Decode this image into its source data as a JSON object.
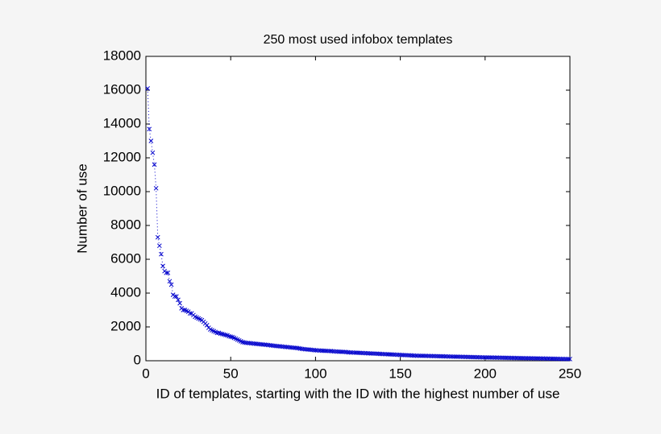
{
  "chart_data": {
    "type": "scatter-line",
    "title": "250 most used infobox templates",
    "x_label": "ID of templates, starting with the ID with the highest number of use",
    "y_label": "Number of use",
    "color": "#0000cc",
    "xlim": [
      0,
      250
    ],
    "xticks": [
      0,
      50,
      100,
      150,
      200,
      250
    ],
    "ylim": [
      0,
      18000
    ],
    "yticks": [
      0,
      2000,
      4000,
      6000,
      8000,
      10000,
      12000,
      14000,
      16000,
      18000
    ],
    "x": [
      1,
      2,
      3,
      4,
      5,
      6,
      7,
      8,
      9,
      10,
      11,
      12,
      13,
      14,
      15,
      16,
      17,
      18,
      19,
      20,
      21,
      22,
      23,
      24,
      25,
      26,
      27,
      28,
      29,
      30,
      31,
      32,
      33,
      34,
      35,
      36,
      37,
      38,
      39,
      40,
      41,
      42,
      43,
      44,
      45,
      46,
      47,
      48,
      49,
      50,
      51,
      52,
      53,
      54,
      55,
      56,
      57,
      58,
      59,
      60,
      61,
      62,
      63,
      64,
      65,
      66,
      67,
      68,
      69,
      70,
      71,
      72,
      73,
      74,
      75,
      76,
      77,
      78,
      79,
      80,
      81,
      82,
      83,
      84,
      85,
      86,
      87,
      88,
      89,
      90,
      91,
      92,
      93,
      94,
      95,
      96,
      97,
      98,
      99,
      100,
      101,
      102,
      103,
      104,
      105,
      106,
      107,
      108,
      109,
      110,
      111,
      112,
      113,
      114,
      115,
      116,
      117,
      118,
      119,
      120,
      121,
      122,
      123,
      124,
      125,
      126,
      127,
      128,
      129,
      130,
      131,
      132,
      133,
      134,
      135,
      136,
      137,
      138,
      139,
      140,
      141,
      142,
      143,
      144,
      145,
      146,
      147,
      148,
      149,
      150,
      151,
      152,
      153,
      154,
      155,
      156,
      157,
      158,
      159,
      160,
      161,
      162,
      163,
      164,
      165,
      166,
      167,
      168,
      169,
      170,
      171,
      172,
      173,
      174,
      175,
      176,
      177,
      178,
      179,
      180,
      181,
      182,
      183,
      184,
      185,
      186,
      187,
      188,
      189,
      190,
      191,
      192,
      193,
      194,
      195,
      196,
      197,
      198,
      199,
      200,
      201,
      202,
      203,
      204,
      205,
      206,
      207,
      208,
      209,
      210,
      211,
      212,
      213,
      214,
      215,
      216,
      217,
      218,
      219,
      220,
      221,
      222,
      223,
      224,
      225,
      226,
      227,
      228,
      229,
      230,
      231,
      232,
      233,
      234,
      235,
      236,
      237,
      238,
      239,
      240,
      241,
      242,
      243,
      244,
      245,
      246,
      247,
      248,
      249,
      250
    ],
    "values": [
      16100,
      13700,
      13000,
      12300,
      11600,
      10200,
      7300,
      6800,
      6300,
      5600,
      5300,
      5200,
      5200,
      4700,
      4500,
      3900,
      3800,
      3800,
      3600,
      3400,
      3100,
      3000,
      3000,
      2950,
      2900,
      2800,
      2800,
      2700,
      2600,
      2550,
      2500,
      2450,
      2400,
      2300,
      2200,
      2100,
      1950,
      1850,
      1800,
      1750,
      1700,
      1650,
      1650,
      1600,
      1580,
      1550,
      1520,
      1500,
      1450,
      1420,
      1400,
      1350,
      1300,
      1250,
      1200,
      1150,
      1100,
      1080,
      1060,
      1050,
      1040,
      1030,
      1020,
      1010,
      1000,
      990,
      980,
      970,
      960,
      950,
      940,
      930,
      920,
      905,
      890,
      880,
      870,
      860,
      850,
      840,
      830,
      820,
      810,
      800,
      790,
      780,
      770,
      760,
      750,
      740,
      720,
      700,
      690,
      680,
      670,
      660,
      650,
      640,
      630,
      620,
      610,
      605,
      600,
      595,
      590,
      585,
      580,
      575,
      570,
      560,
      550,
      545,
      540,
      535,
      530,
      525,
      520,
      510,
      500,
      495,
      490,
      485,
      480,
      475,
      470,
      465,
      460,
      455,
      450,
      445,
      440,
      435,
      430,
      425,
      420,
      415,
      410,
      405,
      400,
      395,
      390,
      385,
      380,
      375,
      370,
      365,
      360,
      355,
      350,
      345,
      340,
      335,
      330,
      325,
      320,
      315,
      310,
      305,
      300,
      298,
      295,
      292,
      290,
      288,
      285,
      282,
      280,
      277,
      275,
      272,
      270,
      267,
      265,
      262,
      260,
      257,
      255,
      252,
      250,
      247,
      245,
      242,
      240,
      237,
      235,
      232,
      230,
      227,
      225,
      222,
      220,
      217,
      215,
      212,
      210,
      207,
      205,
      202,
      200,
      198,
      196,
      194,
      192,
      190,
      188,
      186,
      184,
      182,
      180,
      178,
      176,
      174,
      172,
      170,
      168,
      166,
      164,
      162,
      160,
      158,
      156,
      154,
      152,
      150,
      148,
      146,
      144,
      142,
      140,
      138,
      136,
      134,
      132,
      130,
      128,
      126,
      124,
      122,
      120,
      118,
      116,
      114,
      112,
      110,
      108,
      106,
      104,
      102,
      100,
      98
    ]
  }
}
